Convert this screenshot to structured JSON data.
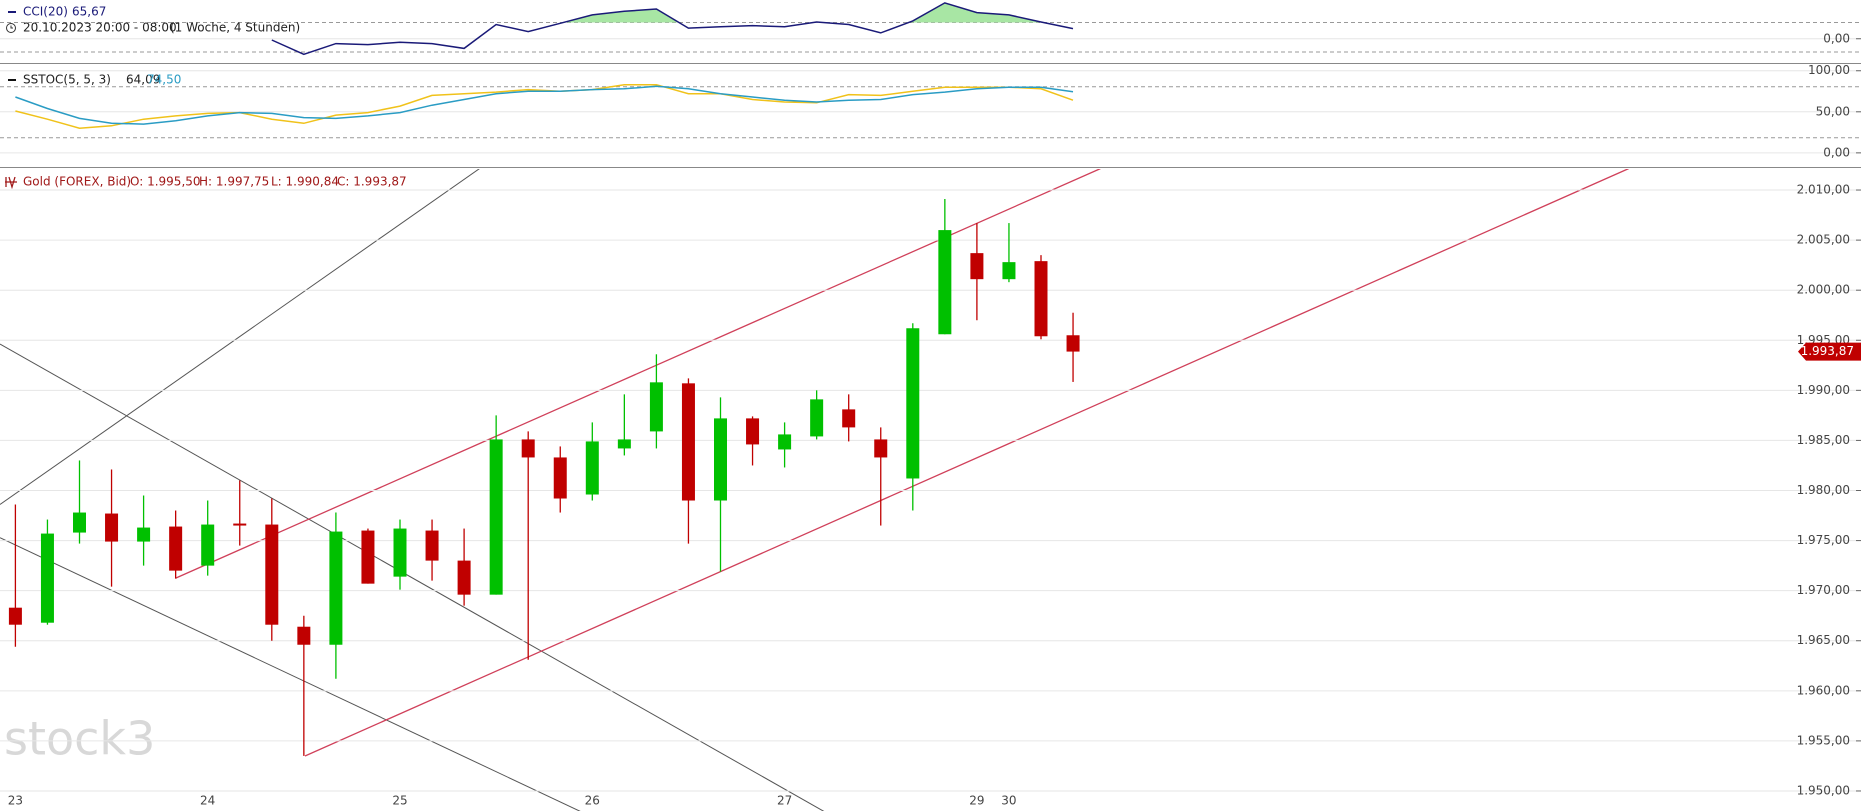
{
  "header": {
    "period": "20.10.2023 20:00 - 08:00",
    "resolution": "(1 Woche, 4 Stunden)"
  },
  "watermark": "stock3",
  "chart_data": [
    {
      "type": "line",
      "title": "CCI(20)",
      "ylim": [
        -150,
        250
      ],
      "yticks": [
        {
          "value": 0,
          "label": "0,00"
        }
      ],
      "series": [
        {
          "color": "#1a1a78",
          "fill": "#a8e6a4",
          "last_label": "65,67",
          "values": [
            null,
            null,
            null,
            null,
            null,
            null,
            null,
            null,
            -8,
            -100,
            -31,
            -38,
            -23,
            -31,
            -62,
            92,
            46,
            100,
            154,
            177,
            192,
            69,
            77,
            85,
            77,
            108,
            92,
            38,
            115,
            231,
            169,
            154,
            108,
            65.67
          ]
        }
      ]
    },
    {
      "type": "line",
      "title": "SSTOC(5, 5, 3)",
      "ylim": [
        -16,
        107
      ],
      "yticks": [
        {
          "value": 100,
          "label": "100,00"
        },
        {
          "value": 50,
          "label": "50,00"
        },
        {
          "value": 0,
          "label": "0,00"
        }
      ],
      "series": [
        {
          "color": "#f0c21a",
          "last_label": "64,09",
          "values": [
            51,
            41,
            30,
            33,
            41,
            45,
            48,
            49,
            41,
            36,
            46,
            49,
            57,
            70,
            72,
            74,
            77,
            75,
            77,
            83,
            83,
            72,
            72,
            65,
            62,
            61,
            71,
            70,
            75,
            80,
            80,
            80,
            78,
            64.09
          ]
        },
        {
          "color": "#2a9cc4",
          "last_label": "74,50",
          "values": [
            68,
            54,
            42,
            36,
            35,
            39,
            45,
            49,
            48,
            43,
            42,
            45,
            49,
            58,
            65,
            72,
            75,
            75,
            77,
            78,
            81,
            78,
            72,
            68,
            64,
            62,
            64,
            65,
            71,
            74,
            78,
            80,
            80,
            74.5
          ]
        }
      ]
    },
    {
      "type": "candlestick",
      "title": "Gold (FOREX, Bid)",
      "ohlc_labels": [
        "O: 1.995,50",
        "H: 1.997,75",
        "L: 1.990,84",
        "C: 1.993,87"
      ],
      "up_color": "#00c000",
      "down_color": "#c00000",
      "categories": [
        "23",
        null,
        null,
        null,
        null,
        null,
        "24",
        null,
        null,
        null,
        null,
        null,
        "25",
        null,
        null,
        null,
        null,
        null,
        "26",
        null,
        null,
        null,
        null,
        null,
        "27",
        null,
        null,
        null,
        null,
        null,
        "29",
        "30",
        null,
        null
      ],
      "open": [
        1968.3,
        1966.8,
        1975.8,
        1977.7,
        1974.9,
        1976.4,
        1972.5,
        1976.7,
        1976.6,
        1966.4,
        1964.6,
        1976.0,
        1971.4,
        1976.0,
        1973.0,
        1969.6,
        1985.1,
        1983.3,
        1979.6,
        1984.2,
        1985.9,
        1990.7,
        1979.0,
        1987.2,
        1984.1,
        1985.4,
        1988.1,
        1985.1,
        1981.2,
        1995.6,
        2003.7,
        2001.1,
        2002.9,
        1995.5
      ],
      "high": [
        1978.6,
        1977.1,
        1983.0,
        1982.1,
        1979.5,
        1978.0,
        1979.0,
        1981.0,
        1979.2,
        1967.5,
        1977.8,
        1976.2,
        1977.1,
        1977.1,
        1976.2,
        1987.5,
        1985.9,
        1984.4,
        1986.8,
        1989.6,
        1993.6,
        1991.2,
        1989.3,
        1987.4,
        1986.8,
        1990.0,
        1989.6,
        1986.3,
        1996.7,
        2009.1,
        2006.7,
        2006.7,
        2003.5,
        1997.75
      ],
      "low": [
        1964.4,
        1966.6,
        1974.7,
        1970.4,
        1972.5,
        1971.2,
        1971.5,
        1974.5,
        1965.0,
        1953.5,
        1961.2,
        1970.7,
        1970.1,
        1971.0,
        1968.5,
        1969.6,
        1963.1,
        1977.8,
        1979.0,
        1983.5,
        1984.2,
        1974.7,
        1971.9,
        1982.5,
        1982.3,
        1985.1,
        1984.9,
        1976.5,
        1978.0,
        1995.6,
        1997.0,
        2000.8,
        1995.1,
        1990.84
      ],
      "close": [
        1966.6,
        1975.7,
        1977.8,
        1974.9,
        1976.3,
        1972.0,
        1976.6,
        1976.5,
        1966.6,
        1964.6,
        1975.9,
        1970.7,
        1976.2,
        1973.0,
        1969.6,
        1985.1,
        1983.3,
        1979.2,
        1984.9,
        1985.1,
        1990.8,
        1979.0,
        1987.2,
        1984.6,
        1985.6,
        1989.1,
        1986.3,
        1983.3,
        1996.2,
        2006.0,
        2001.1,
        2002.8,
        1995.4,
        1993.87
      ],
      "ylim": [
        1948,
        2012.1
      ],
      "yticks": [
        {
          "value": 1950,
          "label": "1.950,00"
        },
        {
          "value": 1955,
          "label": "1.955,00"
        },
        {
          "value": 1960,
          "label": "1.960,00"
        },
        {
          "value": 1965,
          "label": "1.965,00"
        },
        {
          "value": 1970,
          "label": "1.970,00"
        },
        {
          "value": 1975,
          "label": "1.975,00"
        },
        {
          "value": 1980,
          "label": "1.980,00"
        },
        {
          "value": 1985,
          "label": "1.985,00"
        },
        {
          "value": 1990,
          "label": "1.990,00"
        },
        {
          "value": 1995,
          "label": "1.995,00"
        },
        {
          "value": 2000,
          "label": "2.000,00"
        },
        {
          "value": 2005,
          "label": "2.005,00"
        },
        {
          "value": 2010,
          "label": "2.010,00"
        }
      ],
      "last_price": {
        "value": 1993.87,
        "label": "1.993,87"
      }
    }
  ]
}
